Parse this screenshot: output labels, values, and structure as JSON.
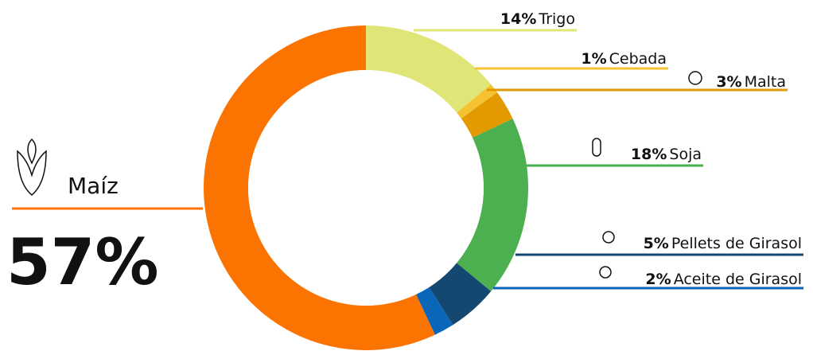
{
  "chart_data": {
    "type": "pie",
    "donut": true,
    "categories": [
      "Trigo",
      "Cebada",
      "Malta",
      "Soja",
      "Pellets de Girasol",
      "Aceite de Girasol",
      "Maíz"
    ],
    "values": [
      14,
      1,
      3,
      18,
      5,
      2,
      57
    ],
    "value_labels": [
      "14%",
      "1%",
      "3%",
      "18%",
      "5%",
      "2%",
      "57%"
    ],
    "colors": [
      "#dfe677",
      "#f5c232",
      "#e39a00",
      "#4caf50",
      "#154870",
      "#0a66b8",
      "#fb7300"
    ]
  }
}
